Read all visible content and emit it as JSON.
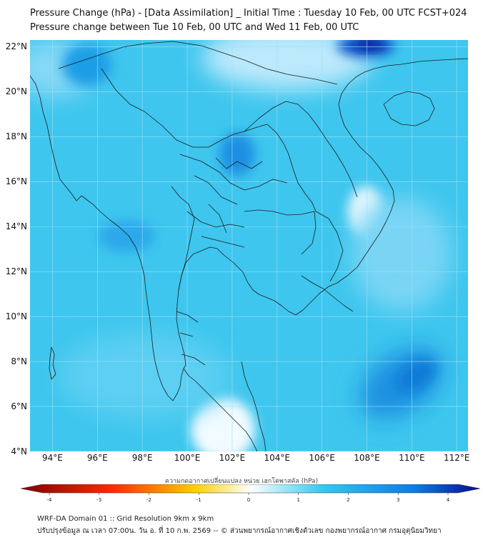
{
  "header": {
    "title_line1": "Pressure Change (hPa) - [Data Assimilation] _ Initial Time : Tuesday 10 Feb, 00 UTC FCST+024",
    "title_line2": "Pressure change between Tue 10 Feb, 00 UTC and Wed 11 Feb, 00 UTC"
  },
  "map": {
    "lat_labels": [
      "22°N",
      "20°N",
      "18°N",
      "16°N",
      "14°N",
      "12°N",
      "10°N",
      "8°N",
      "6°N",
      "4°N"
    ],
    "lon_labels": [
      "94°E",
      "96°E",
      "98°E",
      "100°E",
      "102°E",
      "104°E",
      "106°E",
      "108°E",
      "110°E",
      "112°E"
    ],
    "lat_range": [
      4,
      22.3
    ],
    "lon_range": [
      93,
      112.5
    ],
    "grid": true,
    "background_color": "#3ec6ee"
  },
  "colorbar": {
    "title": "ความกดอากาศเปลี่ยนแปลง หน่วย เฮกโตพาสคัล (hPa)",
    "ticks": [
      "-4",
      "-3",
      "-2",
      "-1",
      "0",
      "1",
      "2",
      "3",
      "4"
    ],
    "range": [
      -4,
      4
    ],
    "colors": {
      "min": "#800000",
      "neg_mid": "#ff2a00",
      "neg_low": "#ffd000",
      "zero": "#ffffff",
      "pos_low": "#30c8f0",
      "pos_mid": "#0a7be8",
      "max": "#0a0a8c"
    }
  },
  "footer": {
    "line1": "WRF-DA Domain 01 :: Grid Resolution 9km x 9km",
    "line2": "ปรับปรุงข้อมูล ณ เวลา 07:00น. วัน อ. ที่ 10 ก.พ. 2569 -- © ส่วนพยากรณ์อากาศเชิงตัวเลข กองพยากรณ์อากาศ กรมอุตุนิยมวิทยา"
  }
}
